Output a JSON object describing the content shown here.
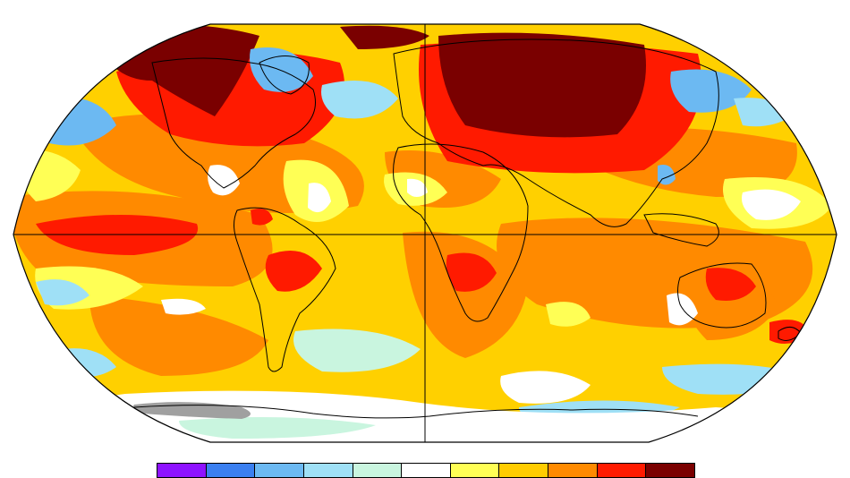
{
  "map": {
    "projection": "Robinson",
    "graticule": [
      "equator",
      "prime-meridian"
    ],
    "colors": {
      "ocean_base": "#ffd000",
      "outline": "#000000",
      "no_data": "#a0a0a0"
    }
  },
  "legend": {
    "colors": [
      "#8e12ff",
      "#3a7ff0",
      "#6cb9f2",
      "#9fe0f6",
      "#c9f5df",
      "#ffffff",
      "#ffff55",
      "#ffcc00",
      "#ff8a00",
      "#ff1a00",
      "#7a0000"
    ]
  }
}
